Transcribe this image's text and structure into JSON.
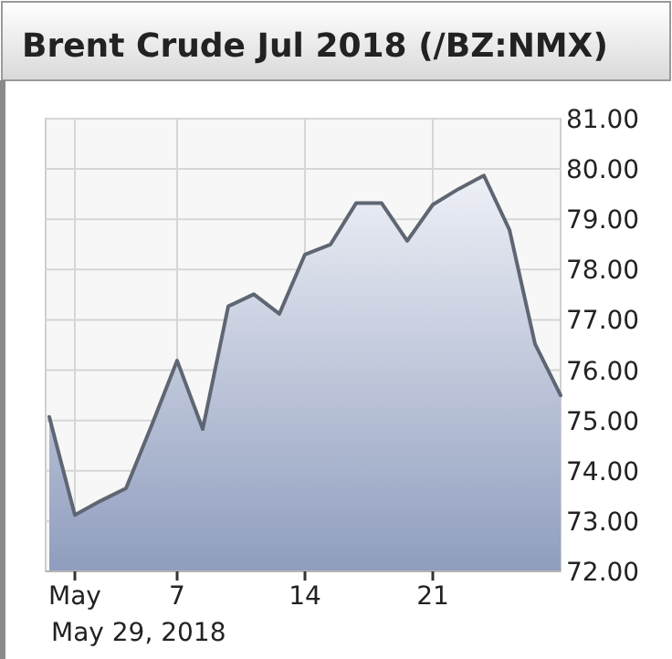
{
  "chart_data": {
    "type": "area",
    "title": "Brent Crude Jul 2018 (/BZ:NMX)",
    "categories": [
      null,
      "May",
      null,
      null,
      null,
      "7",
      null,
      null,
      null,
      null,
      "14",
      null,
      null,
      null,
      null,
      "21",
      null,
      null,
      null,
      null,
      null
    ],
    "series": [
      {
        "color": "#5f6673",
        "values": [
          75.07,
          73.12,
          73.4,
          73.65,
          74.9,
          76.19,
          74.83,
          77.27,
          77.51,
          77.12,
          78.3,
          78.5,
          79.32,
          79.32,
          78.57,
          79.29,
          79.6,
          79.87,
          78.79,
          76.52,
          75.5
        ]
      }
    ],
    "ylim": [
      72,
      81
    ],
    "yticks": [
      {
        "value": 72,
        "label": "72.00"
      },
      {
        "value": 73,
        "label": "73.00"
      },
      {
        "value": 74,
        "label": "74.00"
      },
      {
        "value": 75,
        "label": "75.00"
      },
      {
        "value": 76,
        "label": "76.00"
      },
      {
        "value": 77,
        "label": "77.00"
      },
      {
        "value": 78,
        "label": "78.00"
      },
      {
        "value": 79,
        "label": "79.00"
      },
      {
        "value": 80,
        "label": "80.00"
      },
      {
        "value": 81,
        "label": "81.00"
      }
    ],
    "grid": true,
    "annotations": [
      "May 29, 2018"
    ]
  }
}
